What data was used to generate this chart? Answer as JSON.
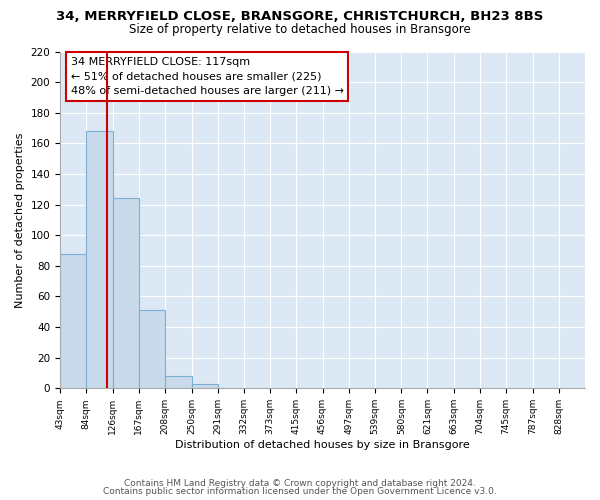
{
  "title_line1": "34, MERRYFIELD CLOSE, BRANSGORE, CHRISTCHURCH, BH23 8BS",
  "title_line2": "Size of property relative to detached houses in Bransgore",
  "xlabel": "Distribution of detached houses by size in Bransgore",
  "ylabel": "Number of detached properties",
  "bar_edges": [
    43,
    84,
    126,
    167,
    208,
    250,
    291,
    332,
    373,
    415,
    456,
    497,
    539,
    580,
    621,
    663,
    704,
    745,
    787,
    828,
    869
  ],
  "bar_values": [
    88,
    168,
    124,
    51,
    8,
    3,
    0,
    0,
    0,
    0,
    0,
    0,
    0,
    0,
    0,
    0,
    0,
    0,
    0,
    0
  ],
  "bar_color": "#c9daea",
  "bar_edge_color": "#7bafd4",
  "reference_line_x": 117,
  "reference_line_color": "#cc0000",
  "annotation_line1": "34 MERRYFIELD CLOSE: 117sqm",
  "annotation_line2": "← 51% of detached houses are smaller (225)",
  "annotation_line3": "48% of semi-detached houses are larger (211) →",
  "annotation_box_color": "#cc0000",
  "annotation_box_fill": "#ffffff",
  "ylim": [
    0,
    220
  ],
  "yticks": [
    0,
    20,
    40,
    60,
    80,
    100,
    120,
    140,
    160,
    180,
    200,
    220
  ],
  "footer_line1": "Contains HM Land Registry data © Crown copyright and database right 2024.",
  "footer_line2": "Contains public sector information licensed under the Open Government Licence v3.0.",
  "fig_background_color": "#ffffff",
  "plot_bg_color": "#dce9f5",
  "grid_color": "#ffffff",
  "title_fontsize": 9.5,
  "subtitle_fontsize": 8.5,
  "annotation_fontsize": 8,
  "footer_fontsize": 6.5,
  "ylabel_fontsize": 8,
  "xlabel_fontsize": 8
}
